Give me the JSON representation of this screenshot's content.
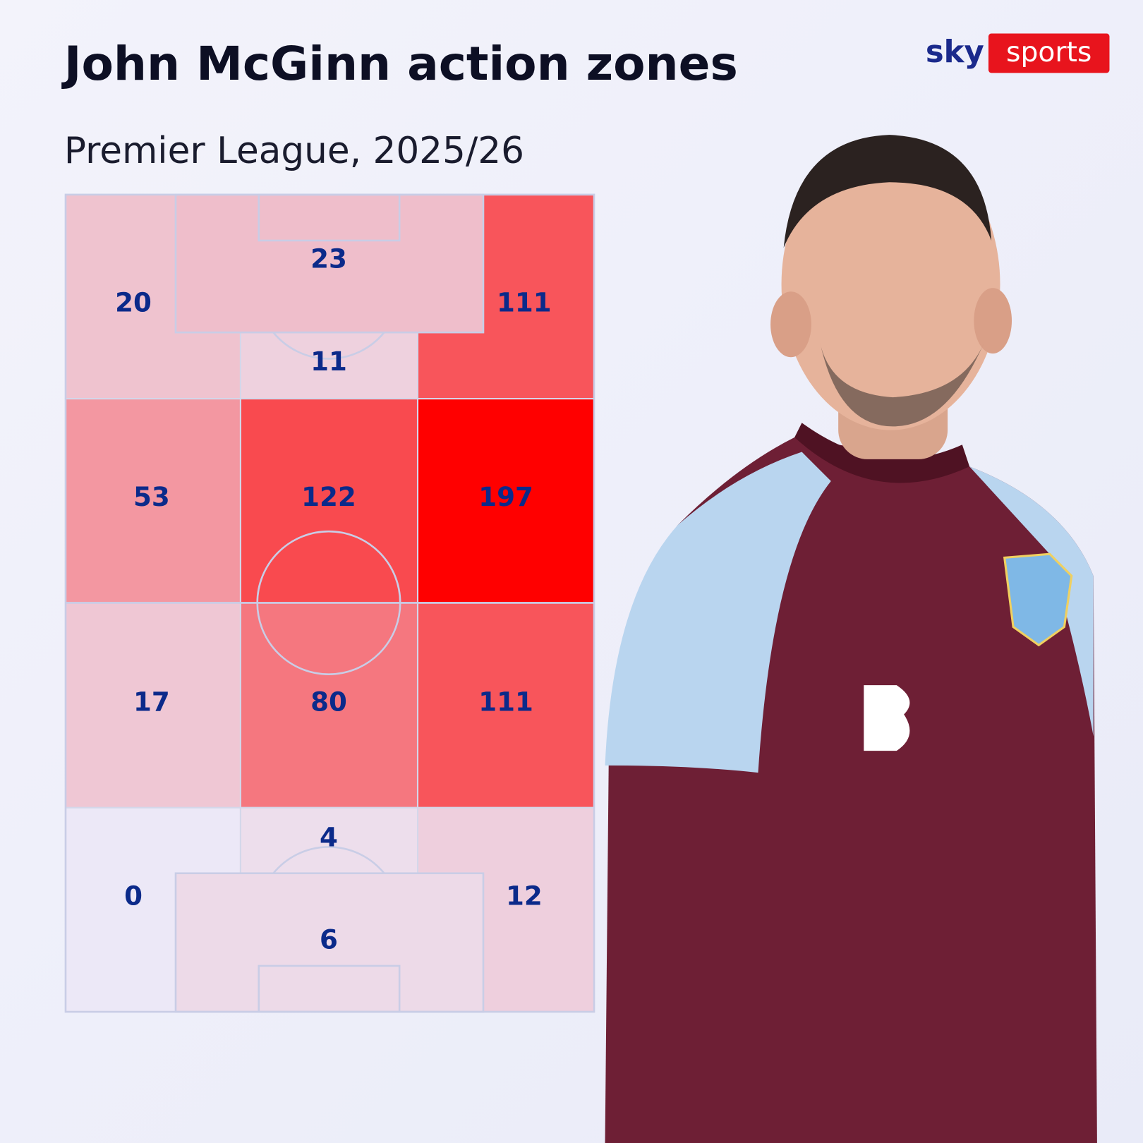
{
  "header": {
    "title": "John McGinn action zones",
    "subtitle": "Premier League, 2025/26"
  },
  "logo": {
    "sky": "sky",
    "sports": "sports"
  },
  "zones": [
    {
      "value": 20
    },
    {
      "value": 23
    },
    {
      "value": 11
    },
    {
      "value": 111
    },
    {
      "value": 53
    },
    {
      "value": 122
    },
    {
      "value": 197
    },
    {
      "value": 17
    },
    {
      "value": 80
    },
    {
      "value": 111
    },
    {
      "value": 0
    },
    {
      "value": 4
    },
    {
      "value": 6
    },
    {
      "value": 12
    }
  ]
}
